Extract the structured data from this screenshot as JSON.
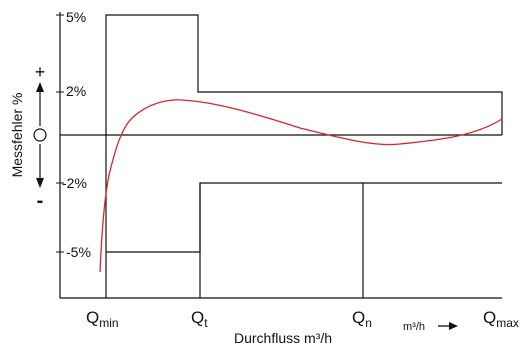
{
  "y_axis": {
    "title": "Messfehler %",
    "plus_sign": "+",
    "zero_sign": "0",
    "minus_sign": "-",
    "tick_labels": [
      "5%",
      "2%",
      "-2%",
      "-5%"
    ]
  },
  "x_axis": {
    "title": "Durchfluss m³/h",
    "unit": "m³/h",
    "q_min": {
      "main": "Q",
      "sub": "min"
    },
    "q_t": {
      "main": "Q",
      "sub": "t"
    },
    "q_n": {
      "main": "Q",
      "sub": "n"
    },
    "q_max": {
      "main": "Q",
      "sub": "max"
    }
  },
  "colors": {
    "line": "#111111",
    "curve": "#d9262e"
  }
}
